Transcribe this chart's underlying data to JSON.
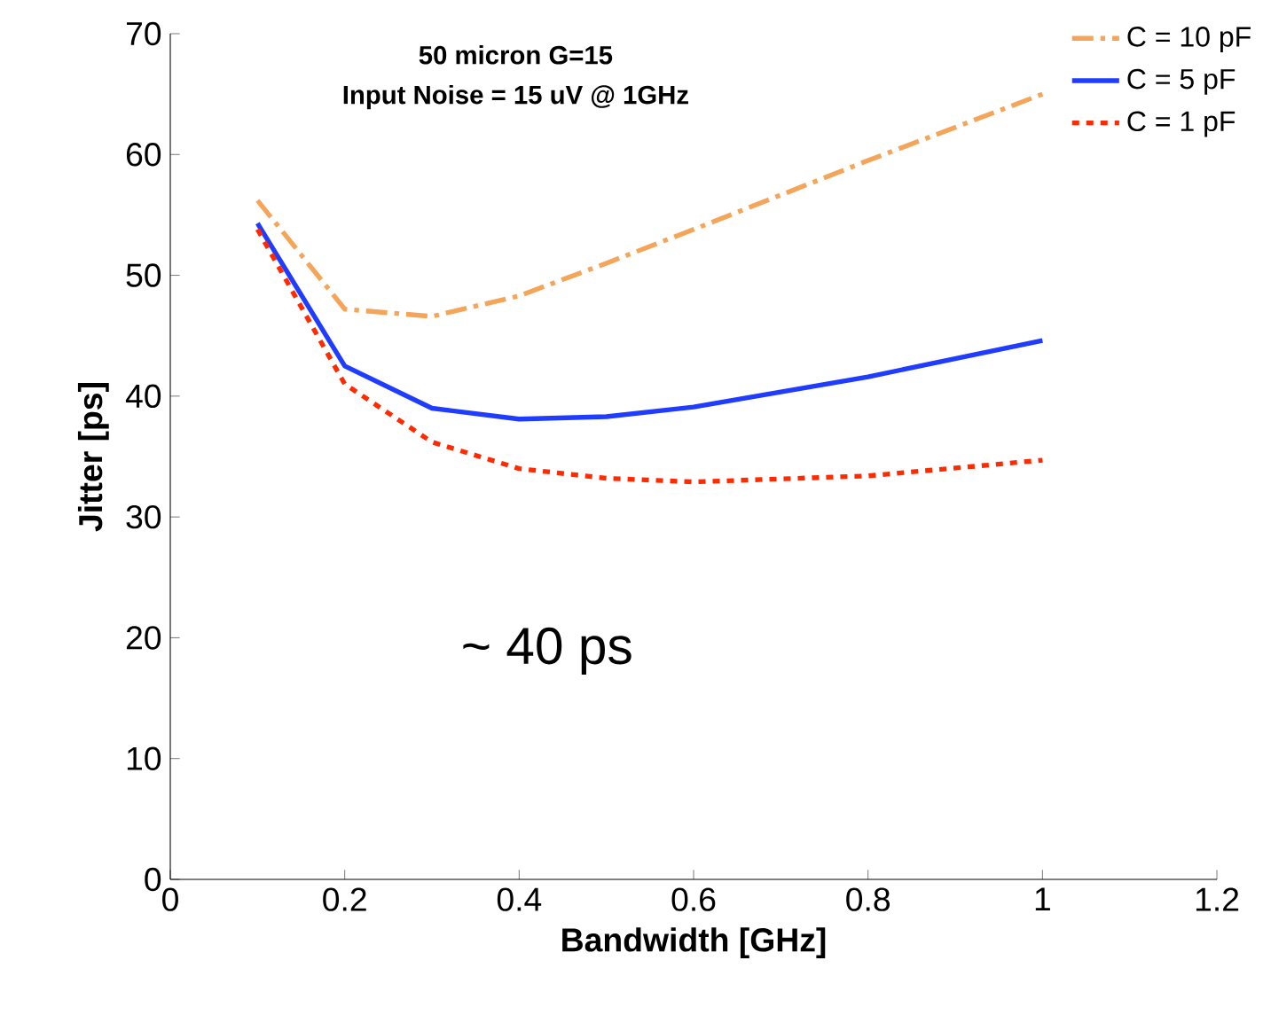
{
  "chart_data": {
    "type": "line",
    "xlabel": "Bandwidth [GHz]",
    "ylabel": "Jitter  [ps]",
    "x": [
      0.1,
      0.2,
      0.3,
      0.4,
      0.5,
      0.6,
      0.8,
      1.0
    ],
    "series": [
      {
        "name": "C = 10 pF",
        "color": "#f5a55a",
        "line_style": "dashdot",
        "values": [
          56.2,
          47.2,
          46.6,
          48.3,
          51,
          53.8,
          59.5,
          65
        ]
      },
      {
        "name": "C = 5 pF",
        "color": "#1f3cff",
        "line_style": "solid",
        "values": [
          54.3,
          42.5,
          39,
          38.1,
          38.3,
          39.1,
          41.6,
          44.6
        ]
      },
      {
        "name": "C = 1 pF",
        "color": "#ff2a00",
        "line_style": "dashed",
        "values": [
          53.8,
          41,
          36.2,
          34,
          33.2,
          32.9,
          33.4,
          34.7
        ]
      }
    ],
    "xlim": [
      0,
      1.2
    ],
    "xticks": [
      0,
      0.2,
      0.4,
      0.6,
      0.8,
      1,
      1.2
    ],
    "ylim": [
      0,
      70
    ],
    "yticks": [
      0,
      10,
      20,
      30,
      40,
      50,
      60,
      70
    ],
    "annotations": [
      "50 micron G=15",
      "Input Noise = 15   uV @ 1GHz",
      "~ 40 ps"
    ],
    "legend": "top right",
    "grid": false,
    "marker": "none"
  }
}
